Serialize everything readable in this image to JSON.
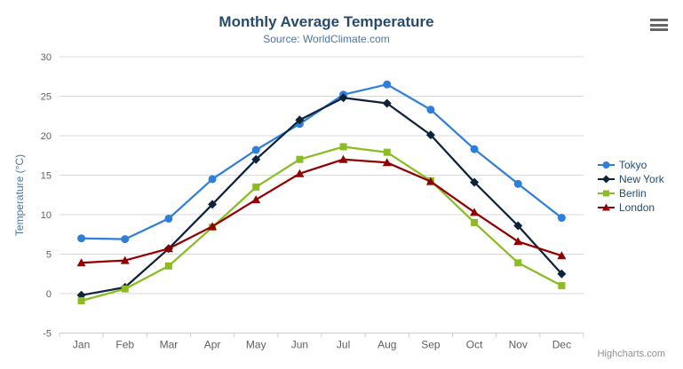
{
  "chart_data": {
    "type": "line",
    "title": "Monthly Average Temperature",
    "subtitle": "Source: WorldClimate.com",
    "xlabel": "",
    "ylabel": "Temperature (°C)",
    "ylim": [
      -5,
      30
    ],
    "ytick_interval": 5,
    "grid": true,
    "legend_position": "right",
    "categories": [
      "Jan",
      "Feb",
      "Mar",
      "Apr",
      "May",
      "Jun",
      "Jul",
      "Aug",
      "Sep",
      "Oct",
      "Nov",
      "Dec"
    ],
    "series": [
      {
        "name": "Tokyo",
        "color": "#2f7ed8",
        "marker": "circle",
        "values": [
          7.0,
          6.9,
          9.5,
          14.5,
          18.2,
          21.5,
          25.2,
          26.5,
          23.3,
          18.3,
          13.9,
          9.6
        ]
      },
      {
        "name": "New York",
        "color": "#0d233a",
        "marker": "diamond",
        "values": [
          -0.2,
          0.8,
          5.7,
          11.3,
          17.0,
          22.0,
          24.8,
          24.1,
          20.1,
          14.1,
          8.6,
          2.5
        ]
      },
      {
        "name": "Berlin",
        "color": "#8bbc21",
        "marker": "square",
        "values": [
          -0.9,
          0.6,
          3.5,
          8.4,
          13.5,
          17.0,
          18.6,
          17.9,
          14.3,
          9.0,
          3.9,
          1.0
        ]
      },
      {
        "name": "London",
        "color": "#910000",
        "marker": "triangle",
        "values": [
          3.9,
          4.2,
          5.7,
          8.5,
          11.9,
          15.2,
          17.0,
          16.6,
          14.2,
          10.3,
          6.6,
          4.8
        ]
      }
    ]
  },
  "credits": {
    "label": "Highcharts.com"
  },
  "icons": {
    "menu": "hamburger-icon"
  },
  "colors": {
    "title": "#274b6d",
    "subtitle": "#4d759e",
    "axis_label": "#606060",
    "axis_title": "#4d759e",
    "gridline": "#d8d8d8",
    "axis_line": "#c0d0e0",
    "legend_text": "#274b6d",
    "credits_text": "#909090",
    "menu_icon": "#666666",
    "background": "#ffffff"
  }
}
